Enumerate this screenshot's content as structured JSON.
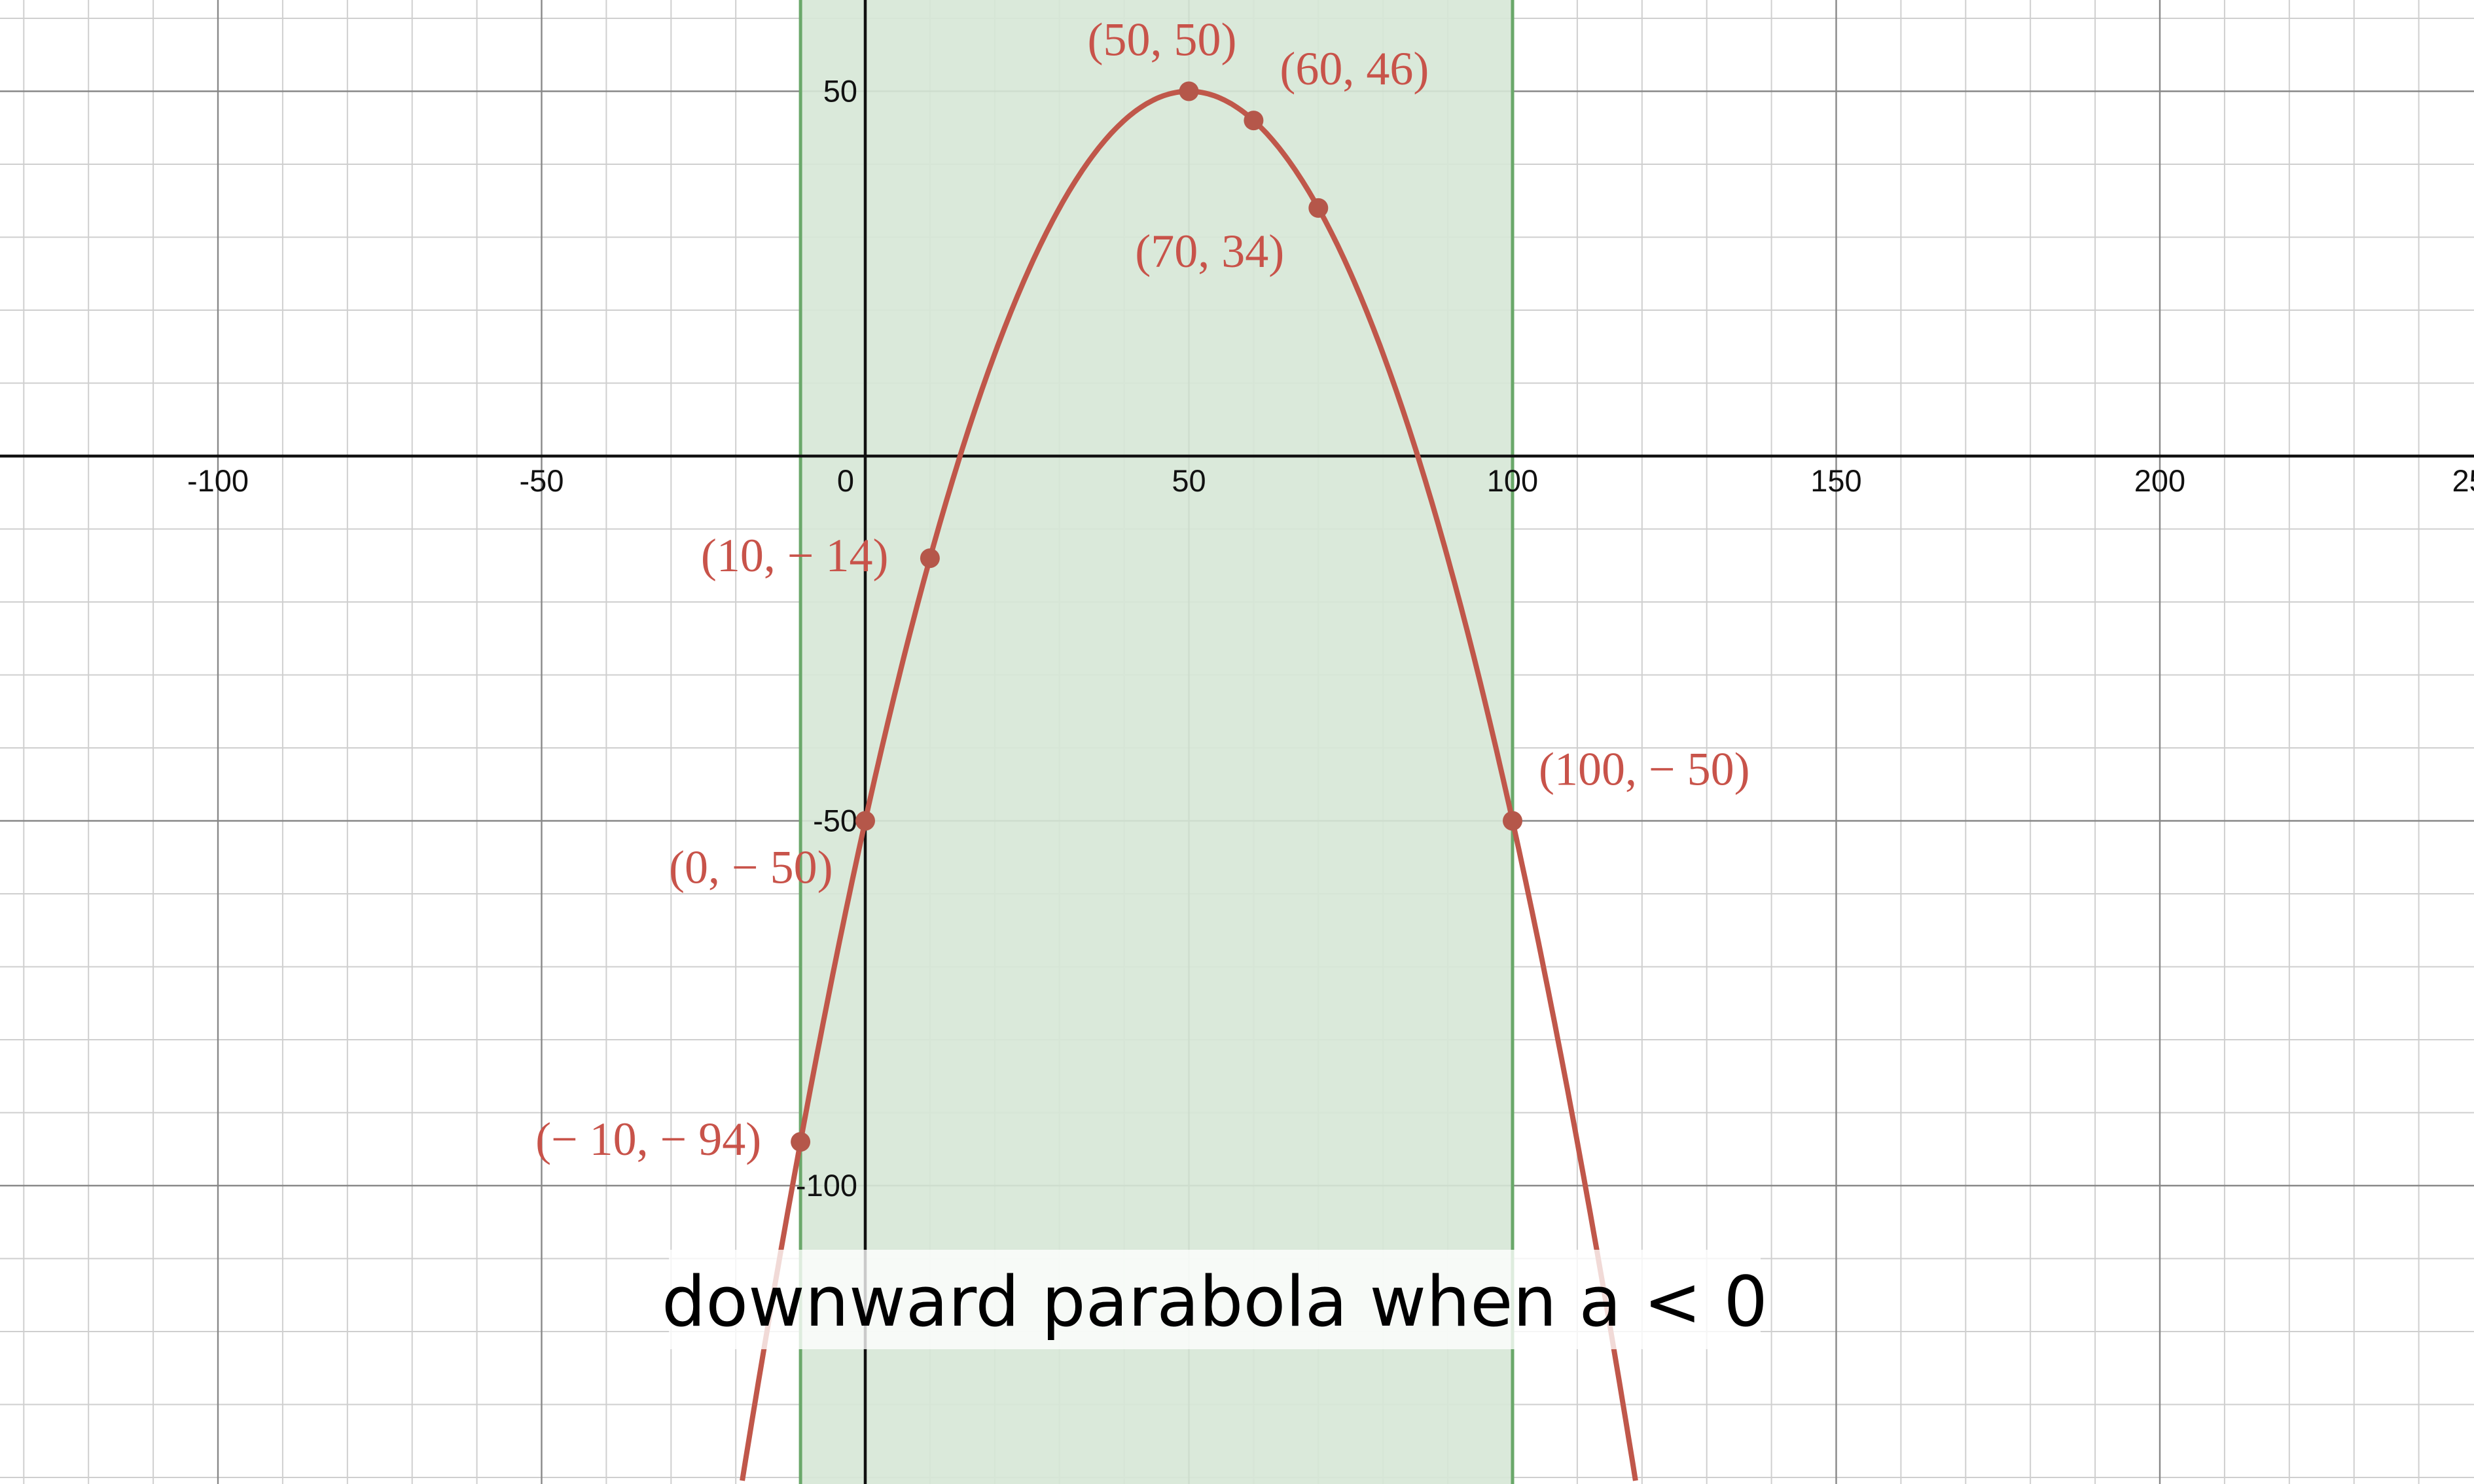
{
  "chart_data": {
    "type": "line",
    "title": "",
    "xlabel": "",
    "ylabel": "",
    "xlim": [
      -133,
      247
    ],
    "ylim": [
      -141,
      70
    ],
    "grid": true,
    "x_ticks": [
      "-100",
      "-50",
      "0",
      "50",
      "100",
      "150",
      "200",
      "25"
    ],
    "y_ticks": [
      "50",
      "-50",
      "-100"
    ],
    "shaded_region": {
      "x_from": -10,
      "x_to": 100
    },
    "series": [
      {
        "equation_coefficients": {
          "a": -0.04,
          "b": 4,
          "c": -50
        },
        "x_range": [
          -19,
          119
        ]
      }
    ],
    "points": [
      {
        "x": 50,
        "y": 50,
        "label": "(50, 50)"
      },
      {
        "x": 60,
        "y": 46,
        "label": "(60, 46)"
      },
      {
        "x": 70,
        "y": 34,
        "label": "(70, 34)"
      },
      {
        "x": 10,
        "y": -14,
        "label": "(10, − 14)"
      },
      {
        "x": 100,
        "y": -50,
        "label": "(100, − 50)"
      },
      {
        "x": 0,
        "y": -50,
        "label": "(0, − 50)"
      },
      {
        "x": -10,
        "y": -94,
        "label": "(− 10, − 94)"
      }
    ],
    "caption": "downward parabola when a < 0",
    "colors": {
      "curve": "#c0574a",
      "point": "#b5574a",
      "label": "#c8534a",
      "region_fill": "#d6e7d6",
      "region_edge": "#6aa86a",
      "grid_major": "#888888",
      "grid_minor": "#cfcfcf",
      "axis": "#111111"
    }
  }
}
